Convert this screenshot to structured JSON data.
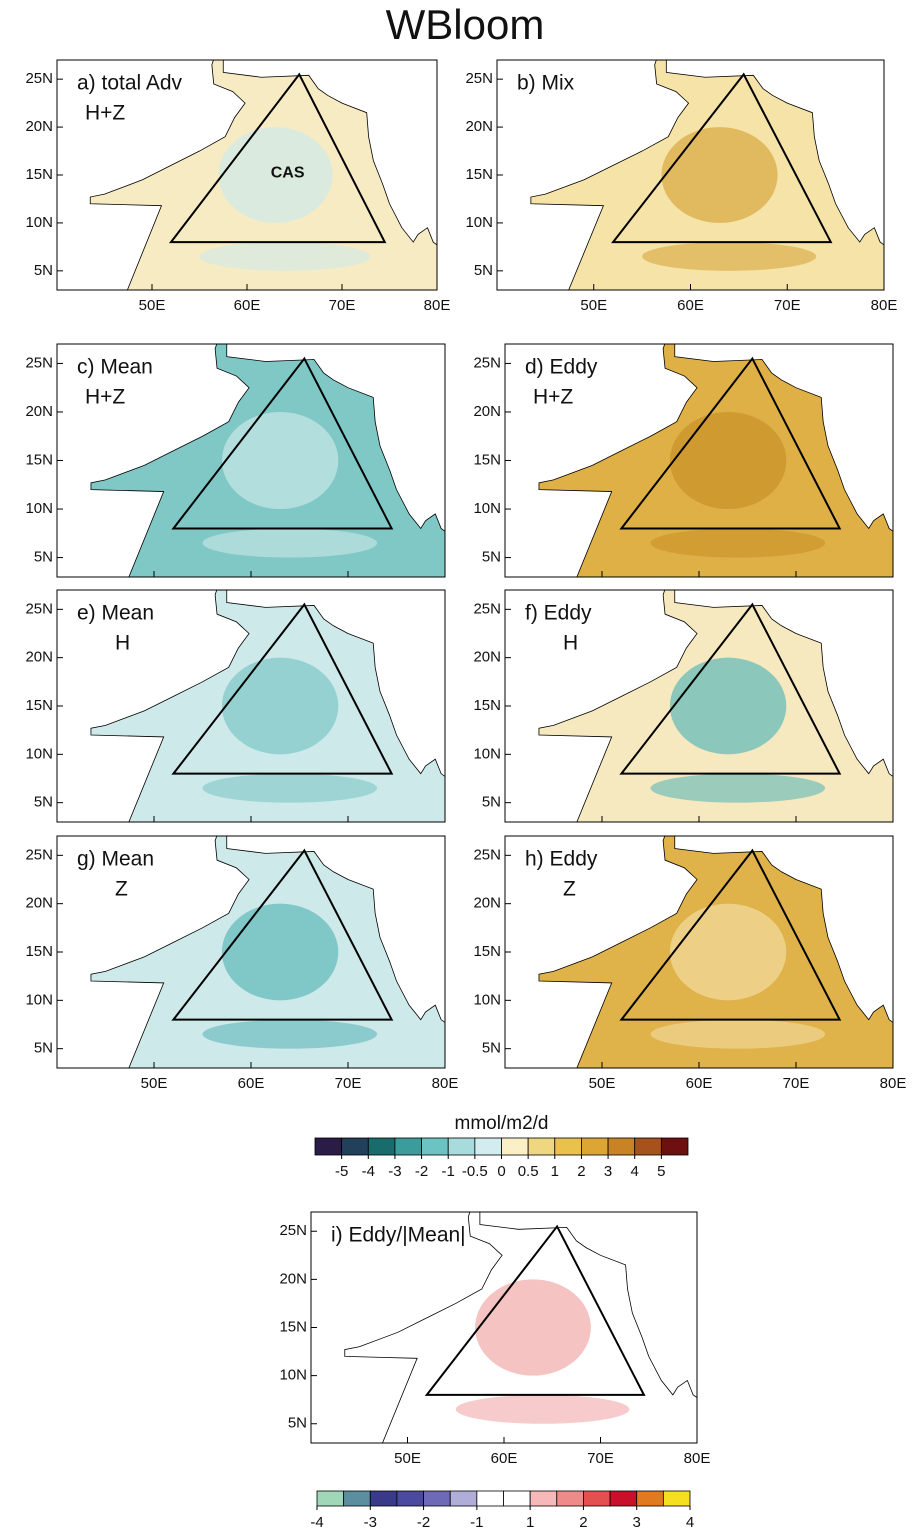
{
  "title": "WBloom",
  "map": {
    "xlim": [
      40,
      80
    ],
    "ylim": [
      3,
      27
    ],
    "xticks": [
      {
        "value": 50,
        "label": "50E"
      },
      {
        "value": 60,
        "label": "60E"
      },
      {
        "value": 70,
        "label": "70E"
      },
      {
        "value": 80,
        "label": "80E"
      }
    ],
    "yticks": [
      {
        "value": 5,
        "label": "5N"
      },
      {
        "value": 10,
        "label": "10N"
      },
      {
        "value": 15,
        "label": "15N"
      },
      {
        "value": 20,
        "label": "20N"
      },
      {
        "value": 25,
        "label": "25N"
      }
    ]
  },
  "region": {
    "label": "CAS",
    "vertices": [
      [
        52,
        8
      ],
      [
        65.5,
        25.5
      ],
      [
        74.5,
        8
      ]
    ]
  },
  "panels": [
    {
      "label": [
        "a) total Adv",
        "H+Z"
      ],
      "fill": "#f7ebc4",
      "accent": "#cfe9ea"
    },
    {
      "label": [
        "b) Mix"
      ],
      "fill": "#f5e3a8",
      "accent": "#d9a640"
    },
    {
      "label": [
        "c) Mean",
        "H+Z"
      ],
      "fill": "#7fc8c6",
      "accent": "#c9e7e8"
    },
    {
      "label": [
        "d) Eddy",
        "H+Z"
      ],
      "fill": "#deb045",
      "accent": "#c99228"
    },
    {
      "label": [
        "e) Mean",
        "H"
      ],
      "fill": "#cde9ea",
      "accent": "#7ec6c5"
    },
    {
      "label": [
        "f) Eddy",
        "H"
      ],
      "fill": "#f6e9bf",
      "accent": "#5fb8b9"
    },
    {
      "label": [
        "g) Mean",
        "Z"
      ],
      "fill": "#cde9ea",
      "accent": "#5fb8b9"
    },
    {
      "label": [
        "h) Eddy",
        "Z"
      ],
      "fill": "#dfb24a",
      "accent": "#f3dca0"
    },
    {
      "label": [
        "i) Eddy/|Mean|"
      ],
      "fill": "#ffffff",
      "accent": "#f2a9a9"
    }
  ],
  "colorbars": [
    {
      "units": "mmol/m2/d",
      "colors": [
        "#2b1b47",
        "#22405a",
        "#1a6b6b",
        "#3c9c9c",
        "#6dc3c3",
        "#a8dcdc",
        "#d3ecef",
        "#faefc7",
        "#efd680",
        "#e8c24c",
        "#dca534",
        "#c88424",
        "#a5521c",
        "#6e1010"
      ],
      "ticks": [
        -5,
        -4,
        -3,
        -2,
        -1,
        -0.5,
        0,
        0.5,
        1,
        2,
        3,
        4,
        5
      ]
    },
    {
      "colors": [
        "#9fd7b8",
        "#5b8fa0",
        "#3a3a8a",
        "#4a4aa0",
        "#6e6ab8",
        "#b0aed8",
        "#ffffff",
        "#ffffff",
        "#f6b8b8",
        "#ee8a8a",
        "#e35050",
        "#c8102a",
        "#e07a20",
        "#f4e020"
      ],
      "ticks": [
        -4,
        -3,
        -2,
        -1,
        1,
        2,
        3,
        4
      ]
    }
  ]
}
